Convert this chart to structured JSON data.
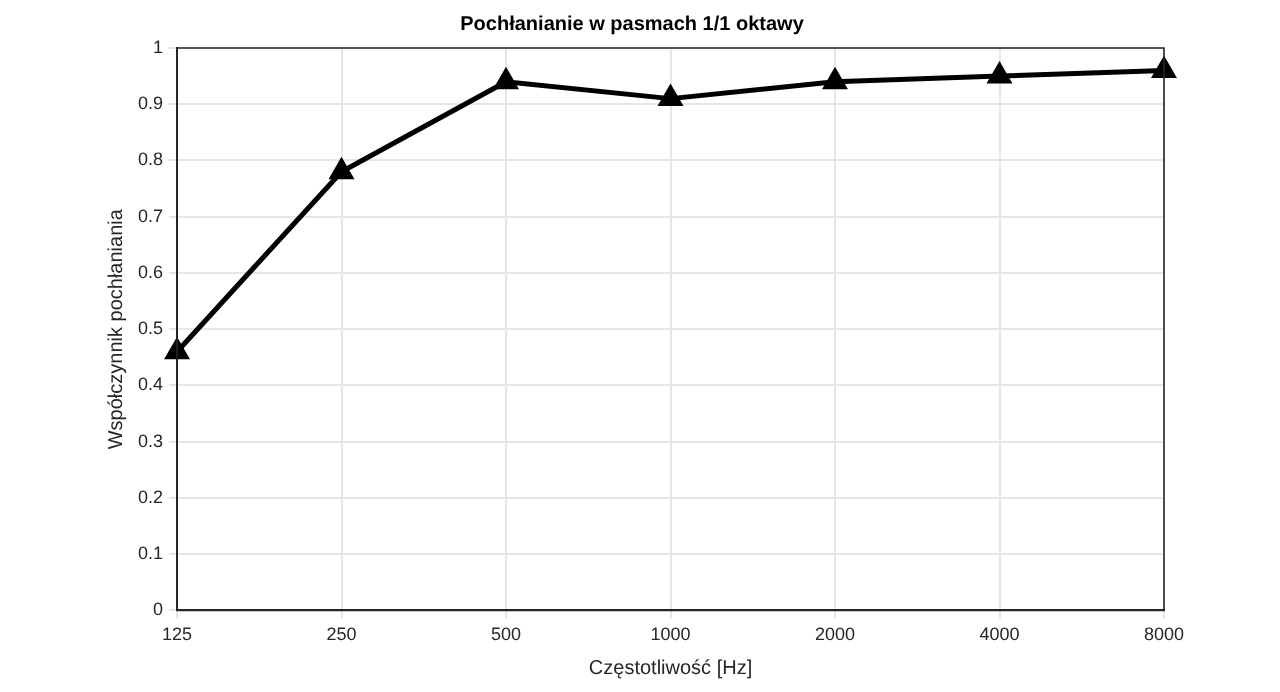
{
  "chart_data": {
    "type": "line",
    "title": "Pochłanianie w pasmach 1/1 oktawy",
    "xlabel": "Częstotliwość [Hz]",
    "ylabel": "Współczynnik pochłaniania",
    "x": [
      125,
      250,
      500,
      1000,
      2000,
      4000,
      8000
    ],
    "series": [
      {
        "color": "#000000",
        "values": [
          0.46,
          0.78,
          0.94,
          0.91,
          0.94,
          0.95,
          0.96
        ]
      }
    ],
    "log": "x",
    "xlim": [
      125,
      8000
    ],
    "xticks": [
      125,
      250,
      500,
      1000,
      2000,
      4000,
      8000
    ],
    "ylim": [
      0,
      1
    ],
    "yticks": [
      0,
      0.1,
      0.2,
      0.3,
      0.4,
      0.5,
      0.6,
      0.7,
      0.8,
      0.9,
      1
    ],
    "grid": true,
    "marker": "triangle",
    "line_style": "solid",
    "legend": false
  }
}
